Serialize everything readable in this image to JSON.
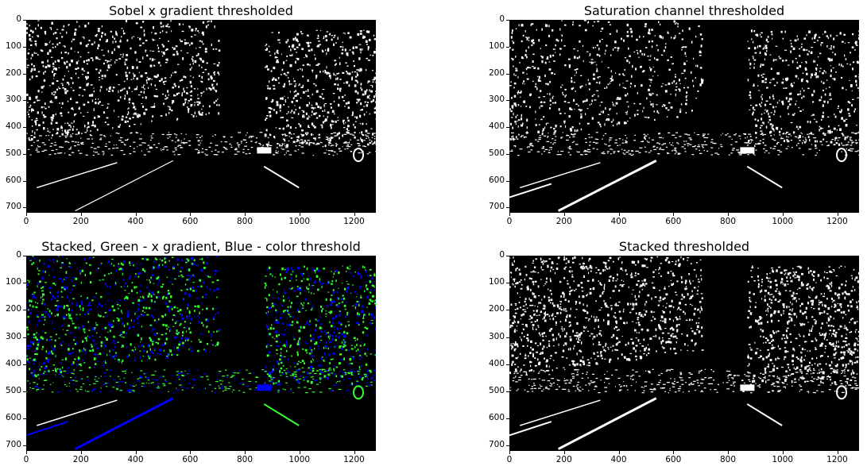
{
  "panels": [
    {
      "title": "Sobel x gradient thresholded",
      "mode": "white",
      "seed": 11
    },
    {
      "title": "Saturation channel thresholded",
      "mode": "white",
      "seed": 23
    },
    {
      "title": "Stacked, Green - x gradient, Blue - color threshold",
      "mode": "color",
      "seed": 37
    },
    {
      "title": "Stacked thresholded",
      "mode": "white",
      "seed": 53
    }
  ],
  "yticks": [
    "0",
    "100",
    "200",
    "300",
    "400",
    "500",
    "600",
    "700"
  ],
  "xticks": [
    "0",
    "200",
    "400",
    "600",
    "800",
    "1000",
    "1200"
  ],
  "colors": {
    "green": "#33ff33",
    "blue": "#0000ff",
    "white": "#ffffff",
    "black": "#000000"
  }
}
